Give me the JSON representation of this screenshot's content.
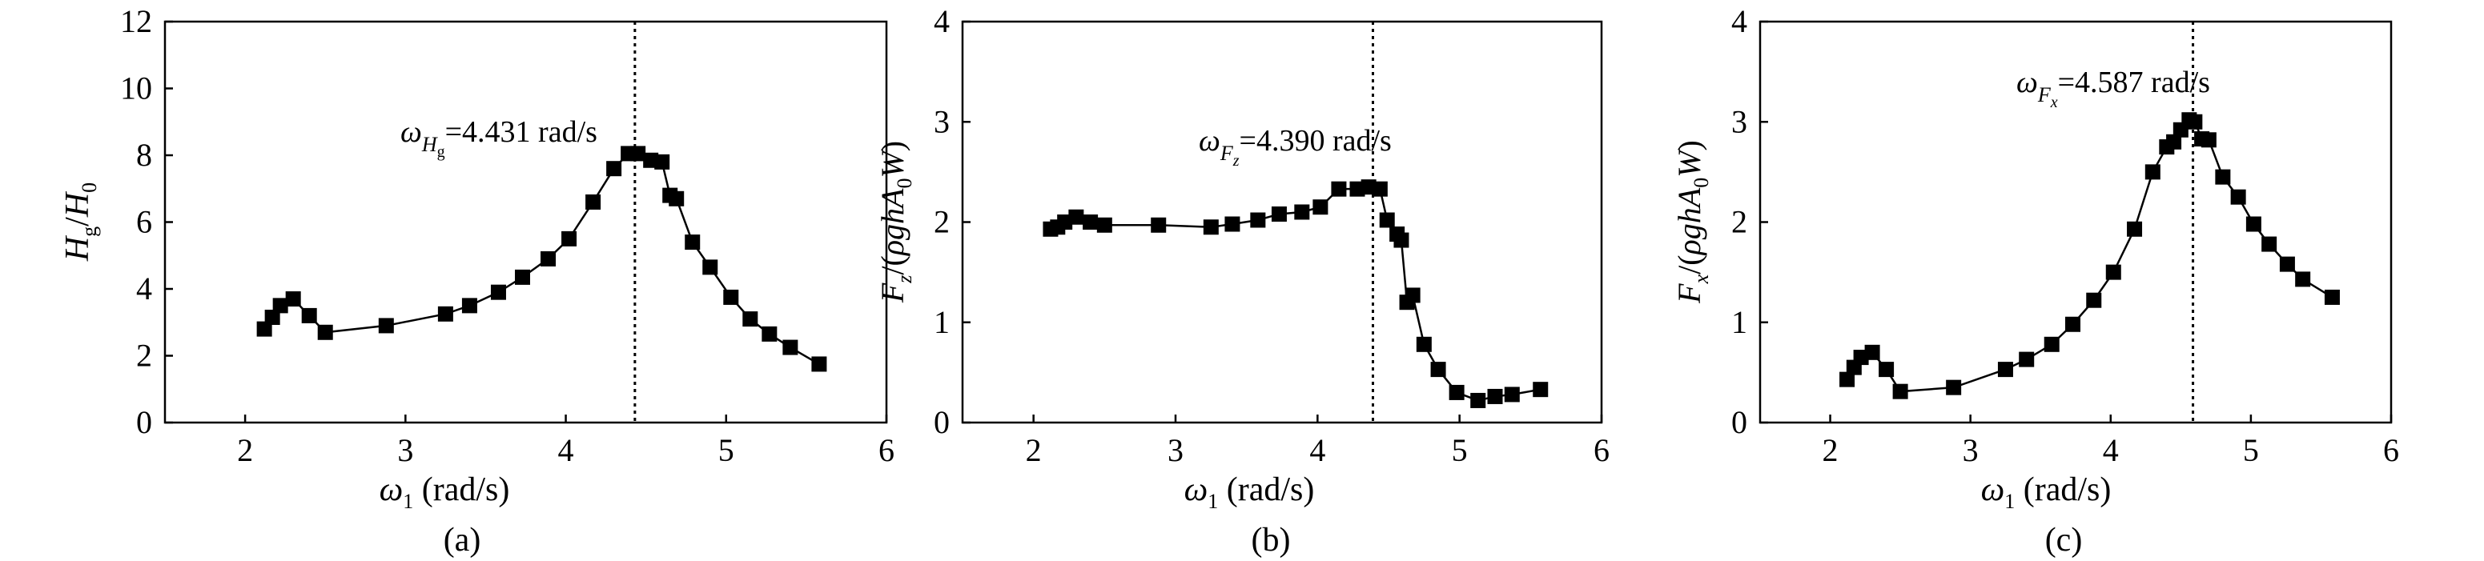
{
  "chart_data": [
    {
      "type": "line",
      "panel_label": "(a)",
      "xlabel": "ω1 (rad/s)",
      "ylabel": "Hg/H0",
      "xlim": [
        1.5,
        6
      ],
      "ylim": [
        0,
        12
      ],
      "xticks": [
        2,
        3,
        4,
        5,
        6
      ],
      "yticks": [
        0,
        2,
        4,
        6,
        8,
        10,
        12
      ],
      "grid": false,
      "vline": 4.431,
      "annotation": "ωHg=4.431 rad/s",
      "series": [
        {
          "marker": "square",
          "points": [
            [
              2.12,
              2.8
            ],
            [
              2.17,
              3.15
            ],
            [
              2.22,
              3.5
            ],
            [
              2.3,
              3.7
            ],
            [
              2.4,
              3.2
            ],
            [
              2.5,
              2.7
            ],
            [
              2.88,
              2.9
            ],
            [
              3.25,
              3.25
            ],
            [
              3.4,
              3.5
            ],
            [
              3.58,
              3.9
            ],
            [
              3.73,
              4.35
            ],
            [
              3.89,
              4.9
            ],
            [
              4.02,
              5.5
            ],
            [
              4.17,
              6.6
            ],
            [
              4.3,
              7.6
            ],
            [
              4.39,
              8.05
            ],
            [
              4.45,
              8.05
            ],
            [
              4.53,
              7.85
            ],
            [
              4.6,
              7.8
            ],
            [
              4.65,
              6.8
            ],
            [
              4.69,
              6.7
            ],
            [
              4.79,
              5.4
            ],
            [
              4.9,
              4.65
            ],
            [
              5.03,
              3.75
            ],
            [
              5.15,
              3.1
            ],
            [
              5.27,
              2.65
            ],
            [
              5.4,
              2.25
            ],
            [
              5.58,
              1.75
            ]
          ]
        }
      ]
    },
    {
      "type": "line",
      "panel_label": "(b)",
      "xlabel": "ω1 (rad/s)",
      "ylabel": "Fz/(ρghA0W)",
      "xlim": [
        1.5,
        6
      ],
      "ylim": [
        0,
        4
      ],
      "xticks": [
        2,
        3,
        4,
        5,
        6
      ],
      "yticks": [
        0,
        1,
        2,
        3,
        4
      ],
      "grid": false,
      "vline": 4.39,
      "annotation": "ωFz=4.390 rad/s",
      "series": [
        {
          "marker": "square",
          "points": [
            [
              2.12,
              1.93
            ],
            [
              2.17,
              1.95
            ],
            [
              2.22,
              2.0
            ],
            [
              2.3,
              2.05
            ],
            [
              2.4,
              2.0
            ],
            [
              2.5,
              1.97
            ],
            [
              2.88,
              1.97
            ],
            [
              3.25,
              1.95
            ],
            [
              3.4,
              1.98
            ],
            [
              3.58,
              2.02
            ],
            [
              3.73,
              2.08
            ],
            [
              3.89,
              2.1
            ],
            [
              4.02,
              2.15
            ],
            [
              4.15,
              2.33
            ],
            [
              4.28,
              2.33
            ],
            [
              4.36,
              2.35
            ],
            [
              4.44,
              2.33
            ],
            [
              4.49,
              2.02
            ],
            [
              4.56,
              1.88
            ],
            [
              4.59,
              1.82
            ],
            [
              4.63,
              1.2
            ],
            [
              4.67,
              1.27
            ],
            [
              4.75,
              0.78
            ],
            [
              4.85,
              0.53
            ],
            [
              4.98,
              0.3
            ],
            [
              5.13,
              0.22
            ],
            [
              5.25,
              0.26
            ],
            [
              5.37,
              0.28
            ],
            [
              5.57,
              0.33
            ]
          ]
        }
      ]
    },
    {
      "type": "line",
      "panel_label": "(c)",
      "xlabel": "ω1 (rad/s)",
      "ylabel": "Fx/(ρghA0W)",
      "xlim": [
        1.5,
        6
      ],
      "ylim": [
        0,
        4
      ],
      "xticks": [
        2,
        3,
        4,
        5,
        6
      ],
      "yticks": [
        0,
        1,
        2,
        3,
        4
      ],
      "grid": false,
      "vline": 4.587,
      "annotation": "ωFx=4.587 rad/s",
      "series": [
        {
          "marker": "square",
          "points": [
            [
              2.12,
              0.43
            ],
            [
              2.17,
              0.55
            ],
            [
              2.22,
              0.65
            ],
            [
              2.3,
              0.7
            ],
            [
              2.4,
              0.53
            ],
            [
              2.5,
              0.31
            ],
            [
              2.88,
              0.35
            ],
            [
              3.25,
              0.53
            ],
            [
              3.4,
              0.63
            ],
            [
              3.58,
              0.78
            ],
            [
              3.73,
              0.98
            ],
            [
              3.88,
              1.22
            ],
            [
              4.02,
              1.5
            ],
            [
              4.17,
              1.93
            ],
            [
              4.3,
              2.5
            ],
            [
              4.4,
              2.75
            ],
            [
              4.45,
              2.8
            ],
            [
              4.5,
              2.92
            ],
            [
              4.56,
              3.02
            ],
            [
              4.6,
              3.0
            ],
            [
              4.65,
              2.83
            ],
            [
              4.7,
              2.82
            ],
            [
              4.8,
              2.45
            ],
            [
              4.91,
              2.25
            ],
            [
              5.02,
              1.98
            ],
            [
              5.13,
              1.78
            ],
            [
              5.26,
              1.58
            ],
            [
              5.37,
              1.43
            ],
            [
              5.58,
              1.25
            ]
          ]
        }
      ]
    }
  ]
}
